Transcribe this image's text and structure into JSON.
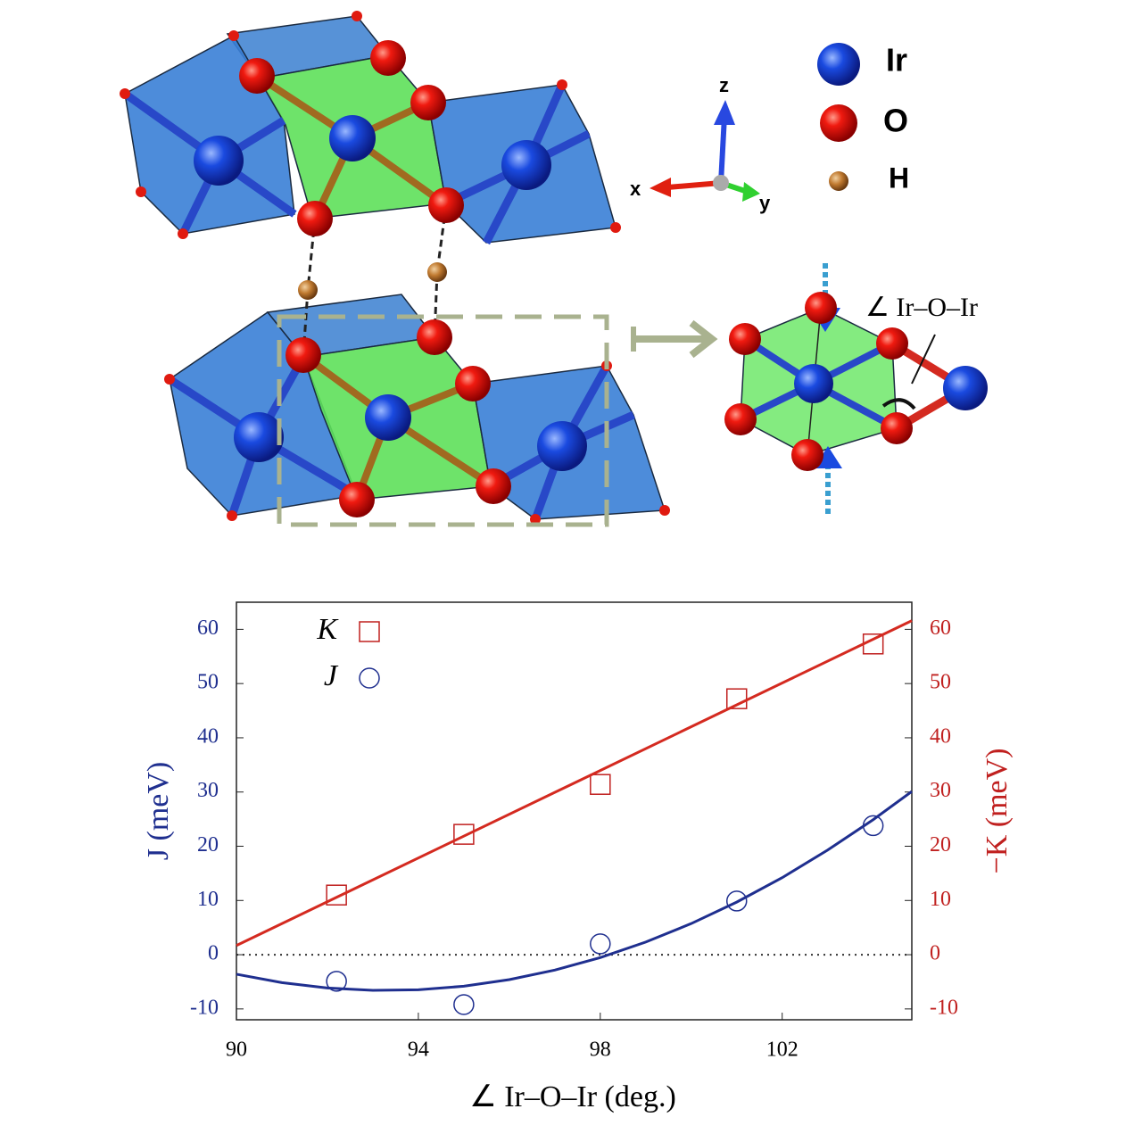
{
  "diagram": {
    "legend": [
      "Ir",
      "O",
      "H"
    ],
    "axes": [
      "x",
      "y",
      "z"
    ],
    "angle_label": "∠ Ir–O–Ir"
  },
  "chart_data": {
    "type": "scatter",
    "xlabel": "∠ Ir–O–Ir (deg.)",
    "ylabel": "J (meV)",
    "y2label": "−K (meV)",
    "xlim": [
      90,
      104.85
    ],
    "xticks": [
      90,
      94,
      98,
      102
    ],
    "ylim": [
      -12,
      65
    ],
    "yticks": [
      -10,
      0,
      10,
      20,
      30,
      40,
      50,
      60
    ],
    "y2lim": [
      -12,
      65
    ],
    "y2ticks": [
      -10,
      0,
      10,
      20,
      30,
      40,
      50,
      60
    ],
    "reference_line": 0,
    "series": [
      {
        "name": "K",
        "color": "#c0201f",
        "marker": "square",
        "axis": "y2",
        "x": [
          92.2,
          95,
          98,
          101,
          104
        ],
        "values": [
          11,
          22.2,
          31.4,
          47.2,
          57.3
        ]
      },
      {
        "name": "J",
        "color": "#1f2f8f",
        "marker": "circle",
        "x": [
          92.2,
          95,
          98,
          101,
          104
        ],
        "values": [
          -4.9,
          -9.2,
          2,
          9.9,
          23.8
        ]
      },
      {
        "color": "#d42a20",
        "marker": "line",
        "axis": "y2",
        "x": [
          90,
          104.85
        ],
        "values": [
          1.7,
          61.6
        ]
      },
      {
        "color": "#1f2f8f",
        "marker": "line",
        "x": [
          90,
          91,
          92,
          93,
          94,
          95,
          96,
          97,
          98,
          99,
          100,
          101,
          102,
          103,
          104,
          104.85
        ],
        "values": [
          -3.6,
          -5.15,
          -6.14,
          -6.58,
          -6.47,
          -5.81,
          -4.6,
          -2.84,
          -0.53,
          2.33,
          5.74,
          9.7,
          14.2,
          19.3,
          24.9,
          30.1
        ]
      }
    ]
  }
}
